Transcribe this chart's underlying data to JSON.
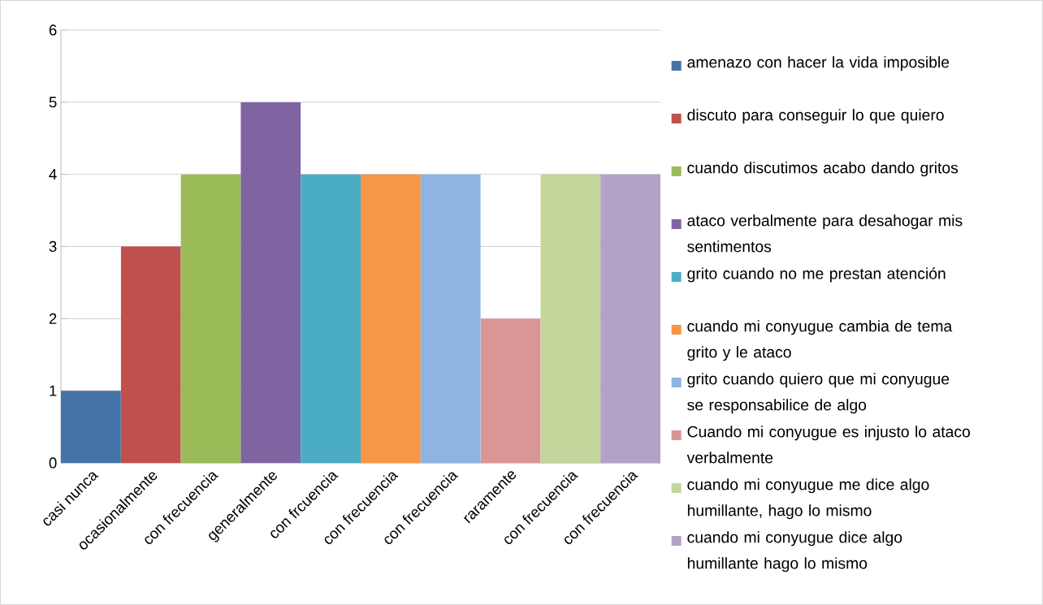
{
  "chart_data": {
    "type": "bar",
    "categories": [
      "casi nunca",
      "ocasionalmente",
      "con frecuencia",
      "generalmente",
      "con frcuencia",
      "con frecuencia",
      "con frecuencia",
      "raramente",
      "con frecuencia",
      "con frecuencia"
    ],
    "series": [
      {
        "name": "amenazo con hacer la vida imposible",
        "color": "#4572a7",
        "values": [
          1,
          null,
          null,
          null,
          null,
          null,
          null,
          null,
          null,
          null
        ]
      },
      {
        "name": "discuto para conseguir lo que quiero",
        "color": "#c0504d",
        "values": [
          null,
          3,
          null,
          null,
          null,
          null,
          null,
          null,
          null,
          null
        ]
      },
      {
        "name": "cuando discutimos acabo dando gritos",
        "color": "#9bbb59",
        "values": [
          null,
          null,
          4,
          null,
          null,
          null,
          null,
          null,
          null,
          null
        ]
      },
      {
        "name": "ataco verbalmente para desahogar mis sentimentos",
        "color": "#8064a2",
        "values": [
          null,
          null,
          null,
          5,
          null,
          null,
          null,
          null,
          null,
          null
        ]
      },
      {
        "name": "grito cuando no me prestan atención",
        "color": "#4bacc6",
        "values": [
          null,
          null,
          null,
          null,
          4,
          null,
          null,
          null,
          null,
          null
        ]
      },
      {
        "name": "cuando mi conyugue cambia de tema grito y le ataco",
        "color": "#f79646",
        "values": [
          null,
          null,
          null,
          null,
          null,
          4,
          null,
          null,
          null,
          null
        ]
      },
      {
        "name": "grito cuando quiero que mi conyugue se responsabilice de algo",
        "color": "#8eb4e3",
        "values": [
          null,
          null,
          null,
          null,
          null,
          null,
          4,
          null,
          null,
          null
        ]
      },
      {
        "name": "Cuando mi conyugue es injusto lo ataco verbalmente",
        "color": "#d99694",
        "values": [
          null,
          null,
          null,
          null,
          null,
          null,
          null,
          2,
          null,
          null
        ]
      },
      {
        "name": "cuando mi conyugue me dice algo humillante, hago lo mismo",
        "color": "#c3d69b",
        "values": [
          null,
          null,
          null,
          null,
          null,
          null,
          null,
          null,
          4,
          null
        ]
      },
      {
        "name": "cuando mi conyugue dice algo humillante hago lo mismo",
        "color": "#b3a2c7",
        "values": [
          null,
          null,
          null,
          null,
          null,
          null,
          null,
          null,
          null,
          4
        ]
      }
    ],
    "ylim": [
      0,
      6
    ],
    "yticks": [
      0,
      1,
      2,
      3,
      4,
      5,
      6
    ],
    "grid": "y",
    "legend": "right"
  }
}
